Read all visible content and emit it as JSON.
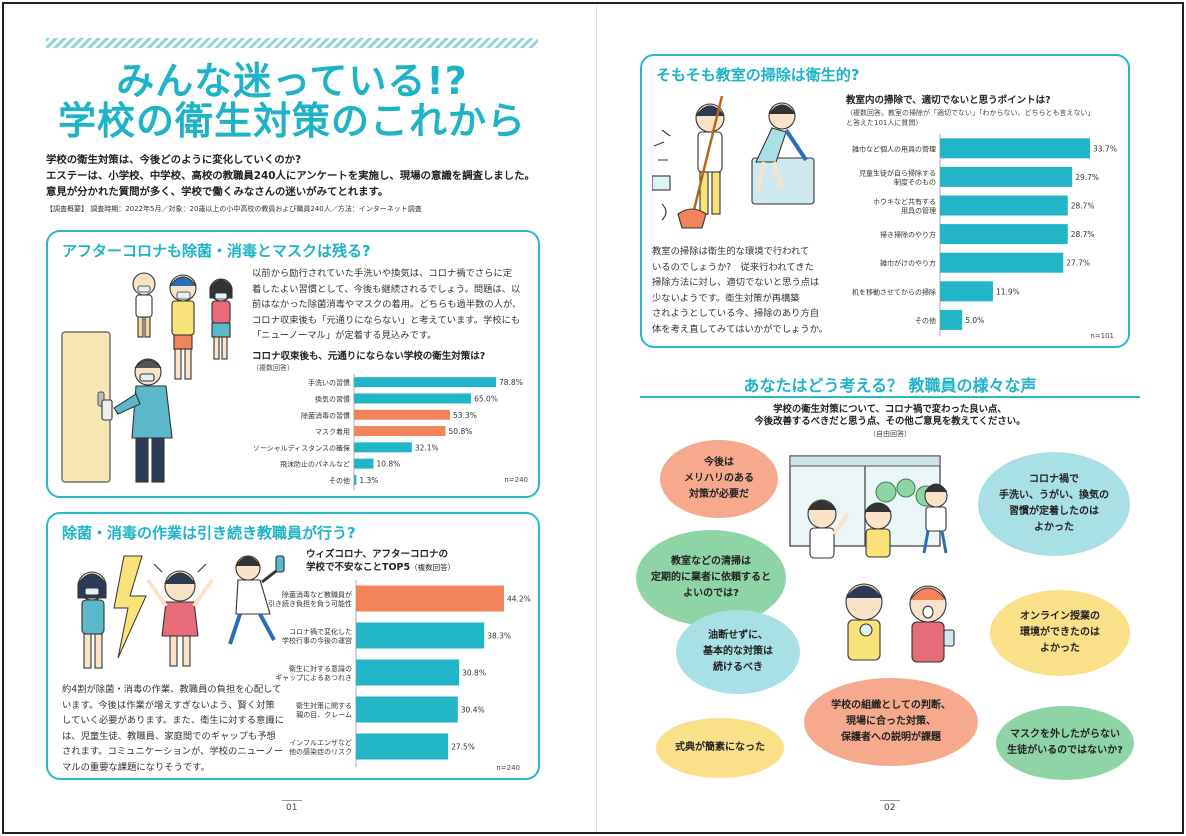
{
  "left_page": {
    "title_line1": "みんな迷っている!?",
    "title_line2": "学校の衛生対策のこれから",
    "intro_line1": "学校の衛生対策は、今後どのように変化していくのか?",
    "intro_line2": "エステーは、小学校、中学校、高校の教職員240人にアンケートを実施し、現場の意識を調査しました。",
    "intro_line3": "意見が分かれた質問が多く、学校で働くみなさんの迷いがみてとれます。",
    "survey_note": "【調査概要】 調査時期：2022年5月／対象：20歳以上の小中高校の教員および職員240人／方法：インターネット調査",
    "page_number": "01"
  },
  "section1": {
    "heading": "アフターコロナも除菌・消毒とマスクは残る?",
    "body_lines": [
      "以前から励行されていた手洗いや換気は、コロナ禍でさらに定",
      "着したよい習慣として、今後も継続されるでしょう。問題は、以",
      "前はなかった除菌消毒やマスクの着用。どちらも過半数の人が、",
      "コロナ収束後も「元通りにならない」と考えています。学校にも",
      "「ニューノーマル」が定着する見込みです。"
    ]
  },
  "section2": {
    "heading": "除菌・消毒の作業は引き続き教職員が行う?",
    "body_lines": [
      "約4割が除菌・消毒の作業、教職員の負担を心配して",
      "います。今後は作業が増えすぎないよう、賢く対策",
      "していく必要があります。また、衛生に対する意識に",
      "は、児童生徒、教職員、家庭間でのギャップも予想",
      "されます。コミュニケーションが、学校のニューノー",
      "マルの重要な課題になりそうです。"
    ]
  },
  "section3": {
    "heading": "そもそも教室の掃除は衛生的?",
    "body_lines": [
      "教室の掃除は衛生的な環境で行われて",
      "いるのでしょうか?　従来行われてきた",
      "掃除方法に対し、適切でないと思う点は",
      "少ないようです。衛生対策が再構築",
      "されようとしている今、掃除のあり方自",
      "体を考え直してみてはいかがでしょうか。"
    ]
  },
  "voices": {
    "heading": "あなたはどう考える？ 教職員の様々な声",
    "question_line1": "学校の衛生対策について、コロナ禍で変わった良い点、",
    "question_line2": "今後改善するべきだと思う点、その他ご意見を教えてください。",
    "question_sub": "（自由回答）",
    "bubbles": [
      {
        "lines": [
          "今後は",
          "メリハリのある",
          "対策が必要だ"
        ],
        "color": "#f6a98c"
      },
      {
        "lines": [
          "コロナ禍で",
          "手洗い、うがい、換気の",
          "習慣が定着したのは",
          "よかった"
        ],
        "color": "#a9e0e6"
      },
      {
        "lines": [
          "教室などの清掃は",
          "定期的に業者に依頼すると",
          "よいのでは?"
        ],
        "color": "#8fd4a6"
      },
      {
        "lines": [
          "オンライン授業の",
          "環境ができたのは",
          "よかった"
        ],
        "color": "#fbe08a"
      },
      {
        "lines": [
          "油断せずに、",
          "基本的な対策は",
          "続けるべき"
        ],
        "color": "#a9e0e6"
      },
      {
        "lines": [
          "学校の組織としての判断、",
          "現場に合った対策、",
          "保護者への説明が課題"
        ],
        "color": "#f6a98c"
      },
      {
        "lines": [
          "式典が簡素になった"
        ],
        "color": "#fbe08a"
      },
      {
        "lines": [
          "マスクを外したがらない",
          "生徒がいるのではないか?"
        ],
        "color": "#8fd4a6"
      }
    ],
    "page_number": "02"
  },
  "chart_data": [
    {
      "type": "bar",
      "orientation": "horizontal",
      "title": "コロナ収束後も、元通りにならない学校の衛生対策は?",
      "subtitle": "（複数回答）",
      "categories": [
        "手洗いの習慣",
        "換気の習慣",
        "除菌消毒の習慣",
        "マスク着用",
        "ソーシャルディスタンスの確保",
        "飛沫防止のパネルなど",
        "その他"
      ],
      "values": [
        78.8,
        65.0,
        53.3,
        50.8,
        32.1,
        10.8,
        1.3
      ],
      "value_labels": [
        "78.8%",
        "65.0%",
        "53.3%",
        "50.8%",
        "32.1%",
        "10.8%",
        "1.3%"
      ],
      "highlight": [
        false,
        false,
        true,
        true,
        false,
        false,
        false
      ],
      "n_label": "n=240",
      "colors": {
        "base": "#22b5c7",
        "highlight": "#f2845c"
      }
    },
    {
      "type": "bar",
      "orientation": "horizontal",
      "title": "ウィズコロナ、アフターコロナの",
      "title_line2": "学校で不安なことTOP5",
      "subtitle": "（複数回答）",
      "categories": [
        [
          "除菌消毒など教職員が",
          "引き続き負担を負う可能性"
        ],
        [
          "コロナ禍で変化した",
          "学校行事の今後の運営"
        ],
        [
          "衛生に対する意識の",
          "ギャップによるあつれき"
        ],
        [
          "衛生対策に関する",
          "親の目、クレーム"
        ],
        [
          "インフルエンザなど",
          "他の感染症のリスク"
        ]
      ],
      "values": [
        44.2,
        38.3,
        30.8,
        30.4,
        27.5
      ],
      "value_labels": [
        "44.2%",
        "38.3%",
        "30.8%",
        "30.4%",
        "27.5%"
      ],
      "highlight": [
        true,
        false,
        false,
        false,
        false
      ],
      "n_label": "n=240",
      "colors": {
        "base": "#22b5c7",
        "highlight": "#f2845c"
      }
    },
    {
      "type": "bar",
      "orientation": "horizontal",
      "title": "教室内の掃除で、適切でないと思うポイントは?",
      "subtitle_line1": "（複数回答。教室の掃除が「適切でない」「わからない、どちらとも言えない」",
      "subtitle_line2": "と答えた101人に質問）",
      "categories": [
        [
          "雑巾など個人の用具の管理"
        ],
        [
          "児童生徒が自ら掃除する",
          "制度そのもの"
        ],
        [
          "ホウキなど共有する",
          "用具の管理"
        ],
        [
          "掃き掃除のやり方"
        ],
        [
          "雑巾がけのやり方"
        ],
        [
          "机を移動させてからの掃除"
        ],
        [
          "その他"
        ]
      ],
      "values": [
        33.7,
        29.7,
        28.7,
        28.7,
        27.7,
        11.9,
        5.0
      ],
      "value_labels": [
        "33.7%",
        "29.7%",
        "28.7%",
        "28.7%",
        "27.7%",
        "11.9%",
        "5.0%"
      ],
      "highlight": [
        false,
        false,
        false,
        false,
        false,
        false,
        false
      ],
      "n_label": "n=101",
      "colors": {
        "base": "#22b5c7",
        "highlight": "#f2845c"
      }
    }
  ]
}
